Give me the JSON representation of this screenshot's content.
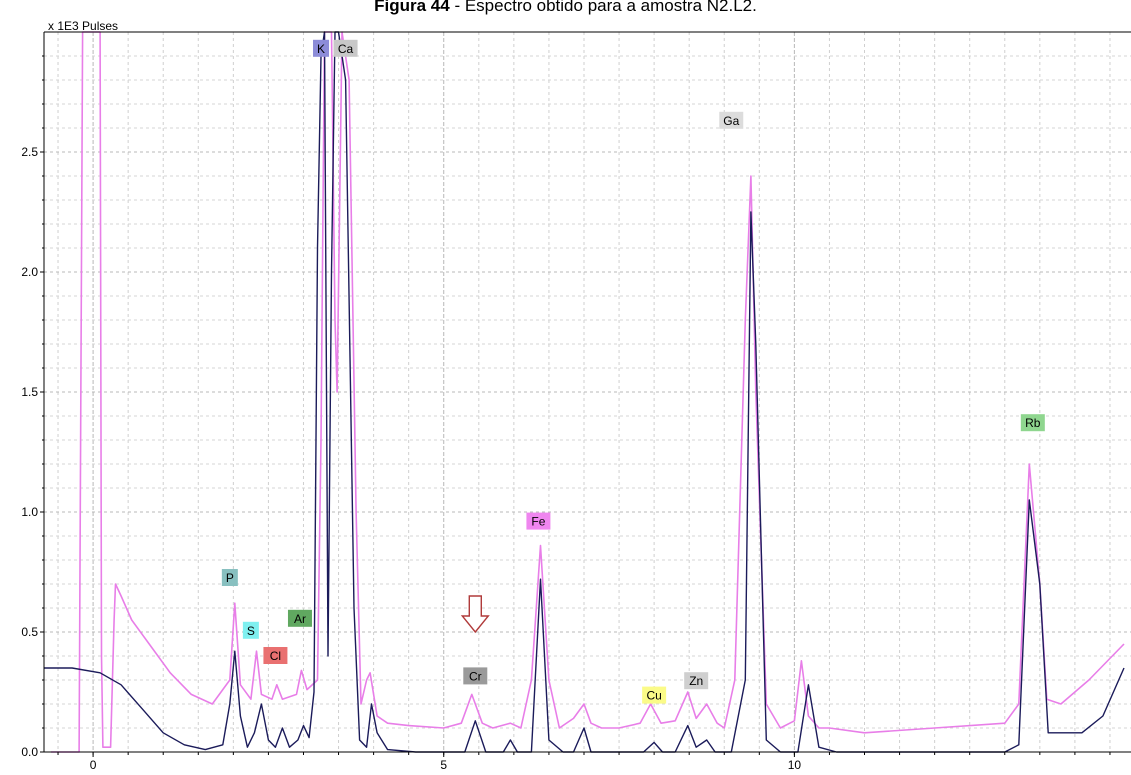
{
  "caption": {
    "bold": "Figura 44",
    "rest": " - Espectro obtido para a amostra N2.L2."
  },
  "chart_data": {
    "type": "line",
    "title": "Figura 44 - Espectro obtido para a amostra N2.L2.",
    "ylabel": "x 1E3 Pulses",
    "xlabel": "",
    "xlim": [
      -0.7,
      14.8
    ],
    "ylim": [
      0,
      3.0
    ],
    "yticks": [
      "0.0",
      "0.5",
      "1.0",
      "1.5",
      "2.0",
      "2.5"
    ],
    "xticks": [
      "0",
      "5",
      "10"
    ],
    "grid": true,
    "series": [
      {
        "color": "#e87ee8",
        "x": [
          -0.6,
          -0.2,
          -0.15,
          -0.1,
          0.1,
          0.12,
          0.14,
          0.25,
          0.3,
          0.32,
          0.4,
          0.55,
          0.8,
          1.1,
          1.4,
          1.7,
          1.95,
          2.02,
          2.1,
          2.25,
          2.33,
          2.4,
          2.55,
          2.62,
          2.7,
          2.9,
          2.97,
          3.05,
          3.2,
          3.25,
          3.3,
          3.4,
          3.45,
          3.48,
          3.55,
          3.65,
          3.75,
          3.82,
          3.9,
          3.95,
          4.05,
          4.2,
          4.5,
          5.0,
          5.25,
          5.4,
          5.55,
          5.7,
          5.95,
          6.1,
          6.25,
          6.38,
          6.5,
          6.65,
          6.85,
          7.0,
          7.1,
          7.25,
          7.5,
          7.8,
          7.95,
          8.1,
          8.3,
          8.48,
          8.6,
          8.75,
          8.9,
          9.0,
          9.15,
          9.3,
          9.38,
          9.45,
          9.6,
          9.8,
          10.0,
          10.1,
          10.2,
          10.35,
          10.5,
          11.0,
          12.0,
          13.0,
          13.2,
          13.35,
          13.5,
          13.6,
          13.8,
          14.2,
          14.7
        ],
        "y": [
          0.0,
          0.0,
          3.0,
          3.0,
          3.0,
          0.4,
          0.02,
          0.02,
          0.55,
          0.7,
          0.65,
          0.55,
          0.45,
          0.33,
          0.24,
          0.2,
          0.3,
          0.62,
          0.28,
          0.22,
          0.42,
          0.24,
          0.22,
          0.28,
          0.22,
          0.24,
          0.34,
          0.26,
          0.3,
          1.3,
          3.0,
          3.0,
          1.8,
          1.5,
          3.0,
          2.8,
          1.0,
          0.2,
          0.3,
          0.33,
          0.15,
          0.12,
          0.11,
          0.1,
          0.12,
          0.24,
          0.12,
          0.1,
          0.12,
          0.1,
          0.3,
          0.86,
          0.3,
          0.1,
          0.14,
          0.2,
          0.12,
          0.1,
          0.1,
          0.12,
          0.2,
          0.12,
          0.13,
          0.25,
          0.14,
          0.2,
          0.12,
          0.1,
          0.3,
          1.8,
          2.4,
          1.5,
          0.2,
          0.1,
          0.13,
          0.38,
          0.15,
          0.1,
          0.1,
          0.08,
          0.1,
          0.12,
          0.2,
          1.2,
          0.7,
          0.22,
          0.2,
          0.3,
          0.45
        ]
      },
      {
        "color": "#1b1b5a",
        "x": [
          -0.7,
          -0.3,
          0.1,
          0.4,
          0.7,
          1.0,
          1.3,
          1.6,
          1.85,
          1.95,
          2.02,
          2.1,
          2.2,
          2.3,
          2.4,
          2.5,
          2.6,
          2.7,
          2.8,
          2.92,
          3.0,
          3.08,
          3.15,
          3.2,
          3.25,
          3.3,
          3.35,
          3.4,
          3.45,
          3.5,
          3.6,
          3.72,
          3.8,
          3.9,
          3.97,
          4.05,
          4.2,
          4.6,
          5.3,
          5.45,
          5.6,
          5.85,
          5.95,
          6.05,
          6.25,
          6.38,
          6.5,
          6.7,
          6.85,
          7.0,
          7.1,
          7.3,
          7.85,
          8.0,
          8.12,
          8.3,
          8.48,
          8.6,
          8.75,
          8.87,
          8.98,
          9.1,
          9.3,
          9.38,
          9.45,
          9.6,
          9.8,
          10.05,
          10.2,
          10.35,
          10.6,
          11.1,
          12.1,
          12.4,
          13.0,
          13.2,
          13.35,
          13.5,
          13.62,
          14.1,
          14.4,
          14.7
        ],
        "y": [
          0.35,
          0.35,
          0.33,
          0.28,
          0.18,
          0.08,
          0.03,
          0.01,
          0.03,
          0.2,
          0.42,
          0.15,
          0.02,
          0.08,
          0.2,
          0.05,
          0.02,
          0.1,
          0.02,
          0.05,
          0.11,
          0.06,
          0.25,
          2.1,
          2.9,
          3.0,
          0.4,
          2.0,
          3.0,
          3.0,
          2.8,
          0.6,
          0.05,
          0.02,
          0.2,
          0.08,
          0.01,
          0.0,
          0.0,
          0.13,
          0.0,
          0.0,
          0.05,
          0.0,
          0.0,
          0.72,
          0.05,
          0.0,
          0.0,
          0.1,
          0.0,
          0.0,
          0.0,
          0.04,
          0.0,
          0.0,
          0.11,
          0.02,
          0.05,
          0.0,
          0.0,
          0.0,
          0.3,
          2.25,
          1.7,
          0.05,
          0.0,
          0.0,
          0.28,
          0.02,
          0.0,
          0.0,
          0.0,
          0.0,
          0.0,
          0.03,
          1.05,
          0.7,
          0.08,
          0.08,
          0.15,
          0.35
        ]
      }
    ],
    "annotations": [
      {
        "text": "K",
        "x": 3.25,
        "y": 2.93,
        "bg": "#8c8cd8"
      },
      {
        "text": "Ca",
        "x": 3.6,
        "y": 2.93,
        "bg": "#c8c8c8"
      },
      {
        "text": "Ga",
        "x": 9.1,
        "y": 2.63,
        "bg": "#dcdcdc"
      },
      {
        "text": "Rb",
        "x": 13.4,
        "y": 1.37,
        "bg": "#8fd68f"
      },
      {
        "text": "Fe",
        "x": 6.35,
        "y": 0.96,
        "bg": "#ef86ef"
      },
      {
        "text": "P",
        "x": 1.95,
        "y": 0.725,
        "bg": "#88c0c0"
      },
      {
        "text": "S",
        "x": 2.25,
        "y": 0.505,
        "bg": "#7ff0f0"
      },
      {
        "text": "Ar",
        "x": 2.95,
        "y": 0.555,
        "bg": "#60a860"
      },
      {
        "text": "Cl",
        "x": 2.6,
        "y": 0.4,
        "bg": "#e97070"
      },
      {
        "text": "Cr",
        "x": 5.45,
        "y": 0.315,
        "bg": "#9a9a9a"
      },
      {
        "text": "Cu",
        "x": 8.0,
        "y": 0.235,
        "bg": "#fbfb88"
      },
      {
        "text": "Zn",
        "x": 8.6,
        "y": 0.295,
        "bg": "#cfcfcf"
      }
    ],
    "arrow": {
      "x": 5.45,
      "y": 0.5,
      "color": "#b03a3a"
    }
  }
}
